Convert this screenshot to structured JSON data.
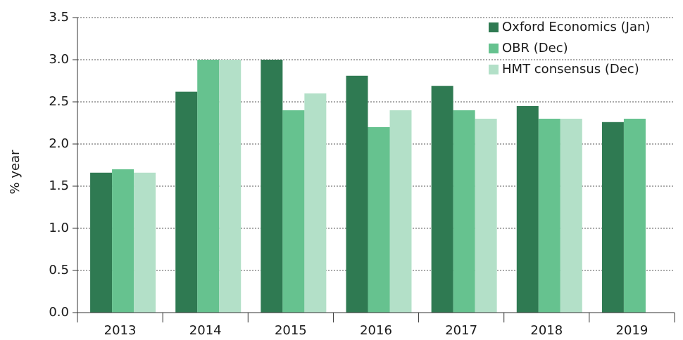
{
  "chart_data": {
    "type": "bar",
    "y_label": "% year",
    "categories": [
      "2013",
      "2014",
      "2015",
      "2016",
      "2017",
      "2018",
      "2019"
    ],
    "series": [
      {
        "name": "Oxford Economics (Jan)",
        "color": "#2f7a52",
        "values": [
          1.66,
          2.62,
          3.0,
          2.81,
          2.69,
          2.45,
          2.26
        ]
      },
      {
        "name": "OBR (Dec)",
        "color": "#66c28f",
        "values": [
          1.7,
          3.0,
          2.4,
          2.2,
          2.4,
          2.3,
          2.3
        ]
      },
      {
        "name": "HMT consensus (Dec)",
        "color": "#b3e0c8",
        "values": [
          1.66,
          3.0,
          2.6,
          2.4,
          2.3,
          2.3,
          null
        ]
      }
    ],
    "ylim": [
      0,
      3.5
    ],
    "yticks": [
      {
        "value": 0,
        "label": "0.0"
      },
      0.5,
      {
        "value": 1,
        "label": "1.0"
      },
      1.5,
      {
        "value": 2,
        "label": "2.0"
      },
      2.5,
      {
        "value": 3,
        "label": "3.0"
      },
      3.5
    ],
    "grid": true,
    "legend": "top-right"
  }
}
